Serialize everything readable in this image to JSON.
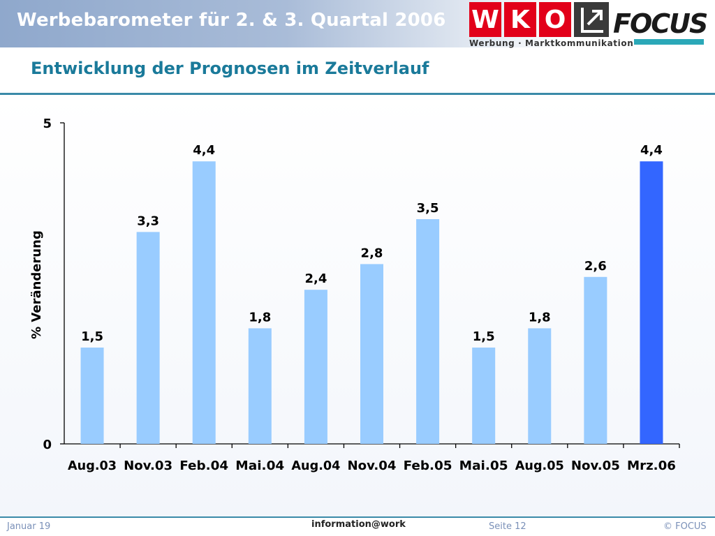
{
  "header": {
    "title": "Werbebarometer für 2. & 3. Quartal 2006",
    "wko_letters": [
      "W",
      "K",
      "O"
    ],
    "wko_tagline": "Werbung · Marktkommunikation",
    "focus_logo_text": "FOCUS"
  },
  "subtitle": "Entwicklung der Prognosen im Zeitverlauf",
  "colors": {
    "bar": "#99ccff",
    "highlight_bar": "#3366ff",
    "title": "#1a7a9a",
    "wko_red": "#e2001a",
    "focus_teal": "#2ba8b8"
  },
  "chart_data": {
    "type": "bar",
    "title": "",
    "xlabel": "",
    "ylabel": "% Veränderung",
    "ylim": [
      0,
      5
    ],
    "yticks": [
      "0",
      "5"
    ],
    "categories": [
      "Aug.03",
      "Nov.03",
      "Feb.04",
      "Mai.04",
      "Aug.04",
      "Nov.04",
      "Feb.05",
      "Mai.05",
      "Aug.05",
      "Nov.05",
      "Mrz.06"
    ],
    "values": [
      1.5,
      3.3,
      4.4,
      1.8,
      2.4,
      2.8,
      3.5,
      1.5,
      1.8,
      2.6,
      4.4
    ],
    "value_labels": [
      "1,5",
      "3,3",
      "4,4",
      "1,8",
      "2,4",
      "2,8",
      "3,5",
      "1,5",
      "1,8",
      "2,6",
      "4,4"
    ],
    "highlight_index": 10,
    "grid": false,
    "legend": "none"
  },
  "footer": {
    "date": "Januar 19",
    "center": "information@work",
    "page": "Seite 12",
    "copyright": "© FOCUS"
  }
}
